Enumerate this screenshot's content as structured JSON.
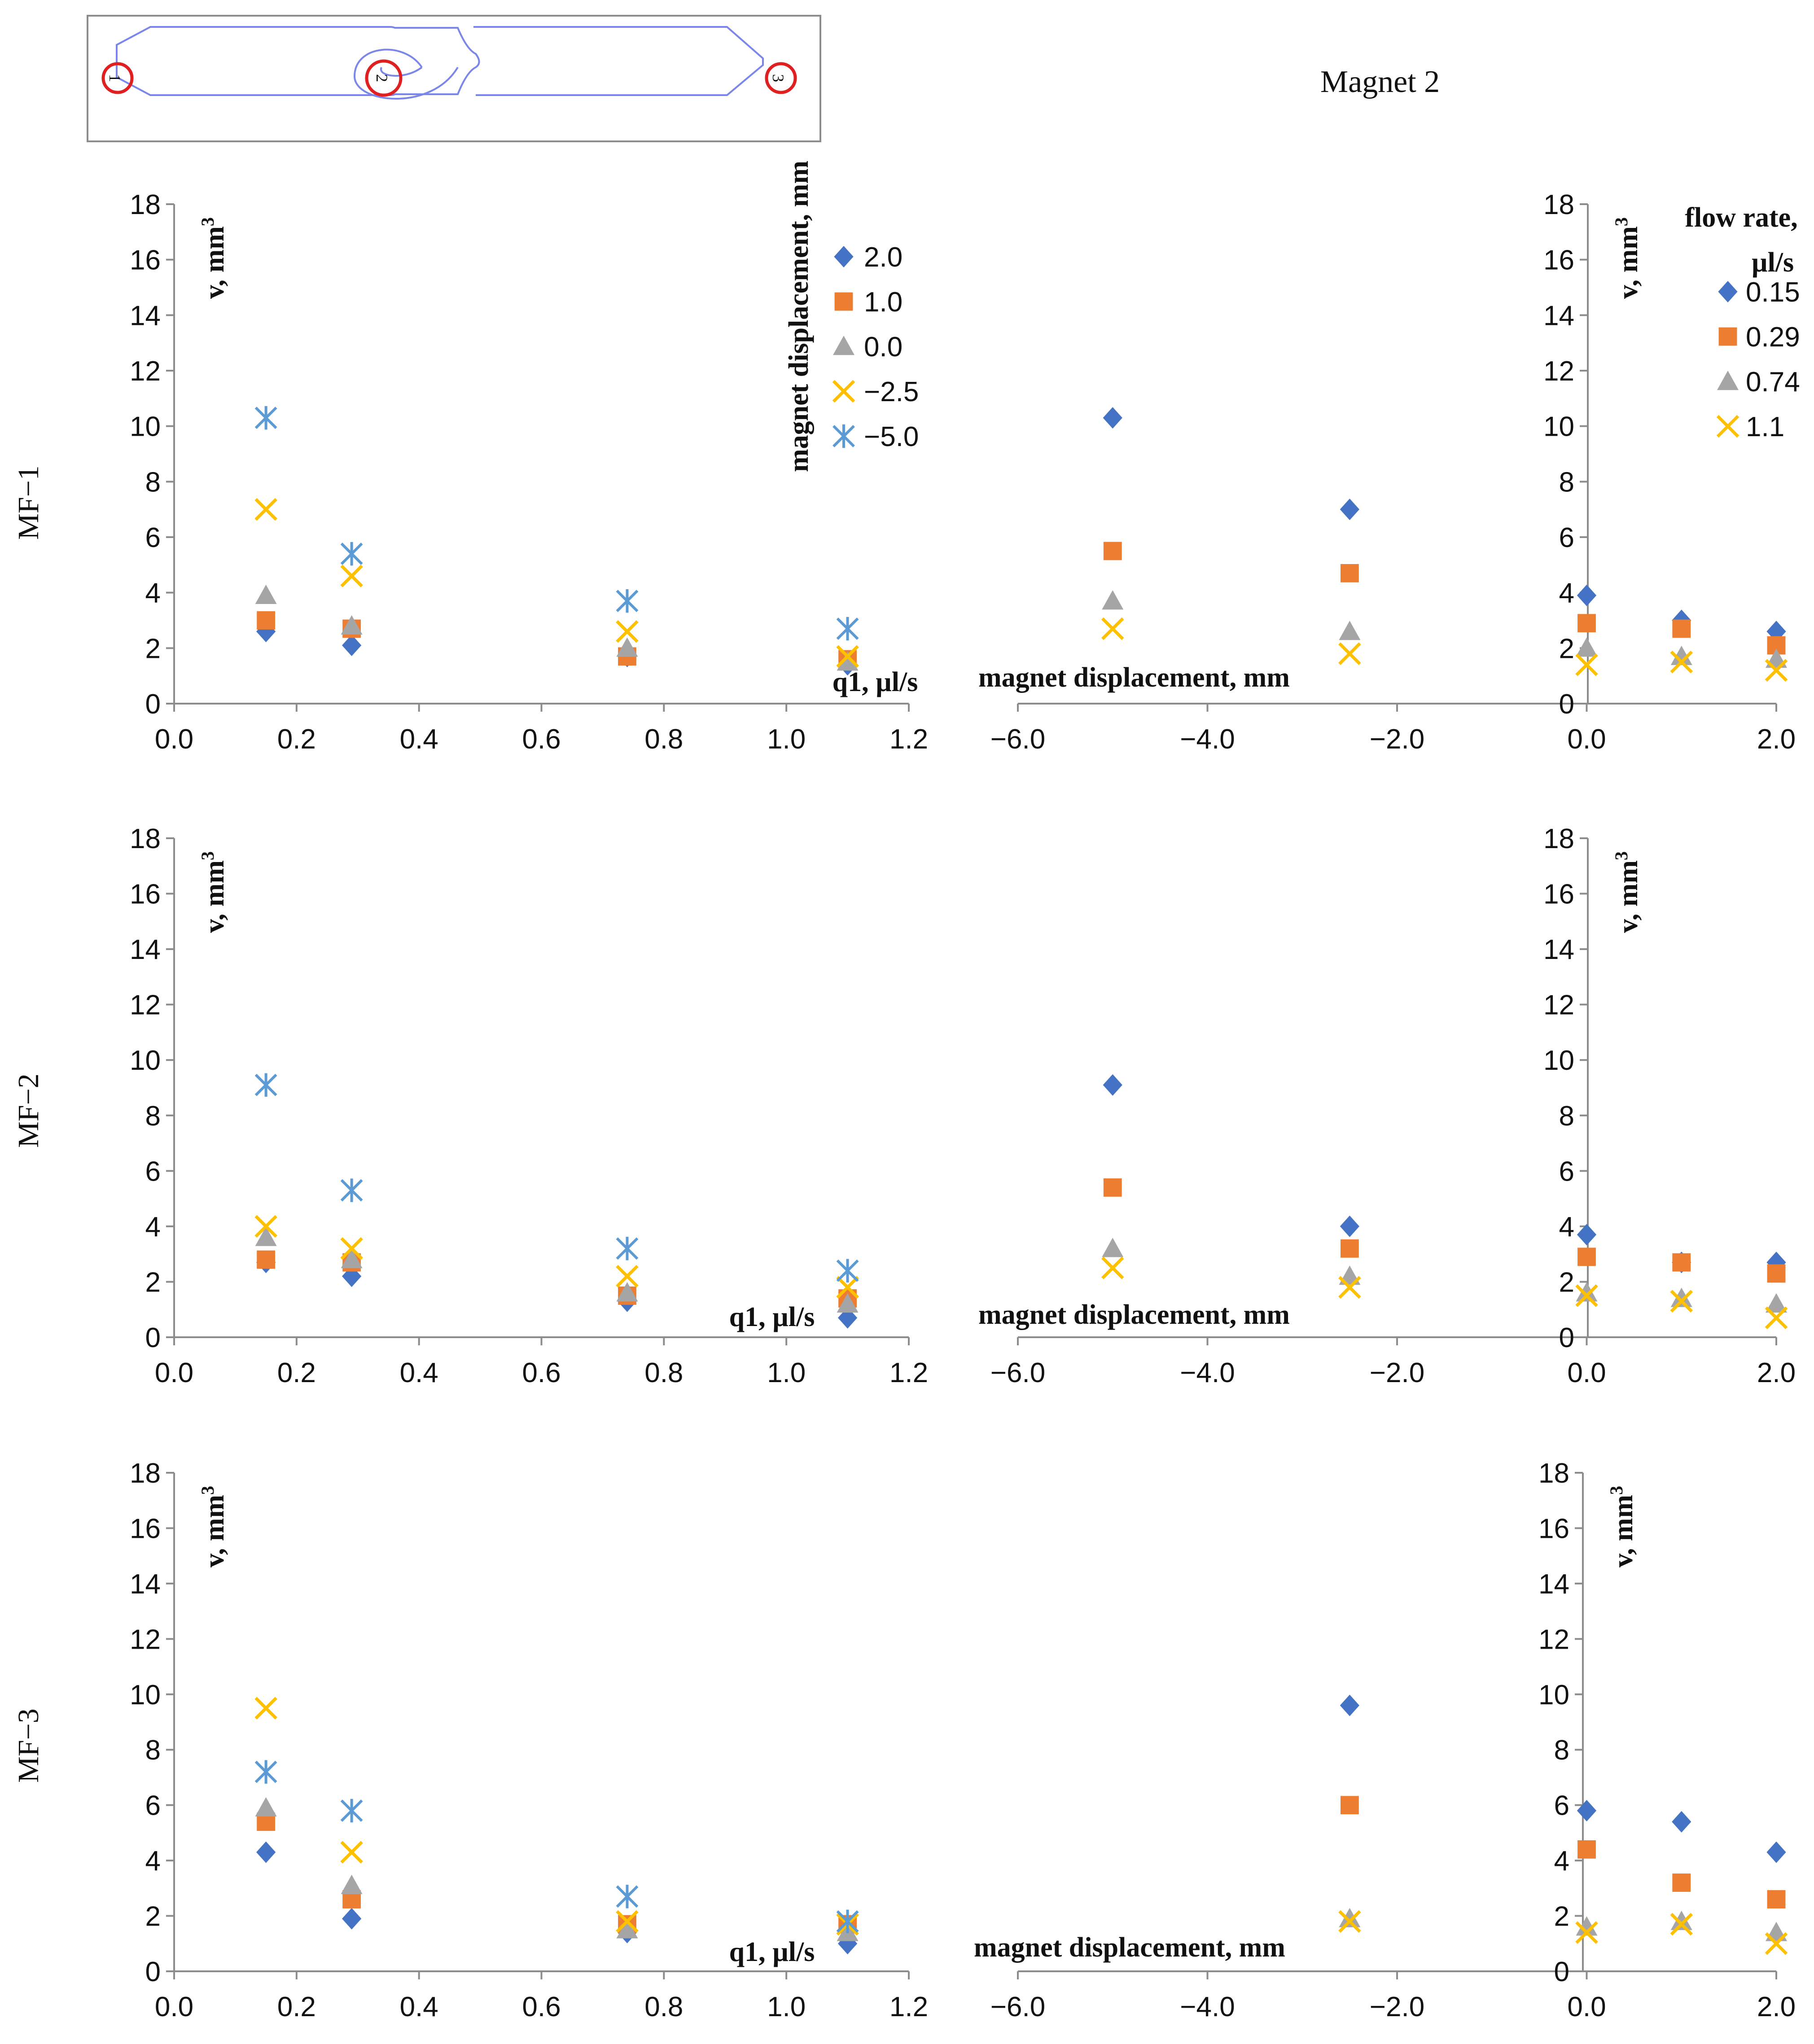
{
  "title": "Magnet 2",
  "schematic": {
    "ports": [
      "1",
      "2",
      "3"
    ]
  },
  "colors": {
    "2.0": "#4472C4",
    "1.0": "#ED7D31",
    "0.0": "#A5A5A5",
    "-2.5": "#FFC000",
    "-5.0": "#5B9BD5",
    "0.15": "#4472C4",
    "0.29": "#ED7D31",
    "0.74": "#A5A5A5",
    "1.1": "#FFC000",
    "axis": "#8c8c8c"
  },
  "legend_left": {
    "title": "magnet displacement, mm",
    "entries": [
      {
        "label": "2.0",
        "marker": "diamond",
        "color": "#4472C4"
      },
      {
        "label": "1.0",
        "marker": "square",
        "color": "#ED7D31"
      },
      {
        "label": "0.0",
        "marker": "triangle",
        "color": "#A5A5A5"
      },
      {
        "label": "−2.5",
        "marker": "x",
        "color": "#FFC000"
      },
      {
        "label": "−5.0",
        "marker": "asterisk",
        "color": "#5B9BD5"
      }
    ]
  },
  "legend_right": {
    "title_line1": "flow rate,",
    "title_line2": "µl/s",
    "entries": [
      {
        "label": "0.15",
        "marker": "diamond",
        "color": "#4472C4"
      },
      {
        "label": "0.29",
        "marker": "square",
        "color": "#ED7D31"
      },
      {
        "label": "0.74",
        "marker": "triangle",
        "color": "#A5A5A5"
      },
      {
        "label": "1.1",
        "marker": "x",
        "color": "#FFC000"
      }
    ]
  },
  "chart_data": [
    {
      "type": "scatter",
      "row": "MF−1",
      "ylabel": "v, mm",
      "xlabel": "q1, µl/s",
      "xlim": [
        0,
        1.2
      ],
      "ylim": [
        0,
        18
      ],
      "xticks": [
        "0.0",
        "0.2",
        "0.4",
        "0.6",
        "0.8",
        "1.0",
        "1.2"
      ],
      "yticks": [
        "0",
        "2",
        "4",
        "6",
        "8",
        "10",
        "12",
        "14",
        "16",
        "18"
      ],
      "x": [
        0.15,
        0.29,
        0.74,
        1.1
      ],
      "series": [
        {
          "name": "2.0",
          "marker": "diamond",
          "color": "#4472C4",
          "values": [
            2.6,
            2.1,
            1.7,
            1.4
          ]
        },
        {
          "name": "1.0",
          "marker": "square",
          "color": "#ED7D31",
          "values": [
            3.0,
            2.7,
            1.7,
            1.6
          ]
        },
        {
          "name": "0.0",
          "marker": "triangle",
          "color": "#A5A5A5",
          "values": [
            3.9,
            2.8,
            2.0,
            1.5
          ]
        },
        {
          "name": "−2.5",
          "marker": "x",
          "color": "#FFC000",
          "values": [
            7.0,
            4.6,
            2.6,
            1.7
          ]
        },
        {
          "name": "−5.0",
          "marker": "asterisk",
          "color": "#5B9BD5",
          "values": [
            10.3,
            5.4,
            3.7,
            2.7
          ]
        }
      ]
    },
    {
      "type": "scatter",
      "row": "MF−1",
      "ylabel": "v, mm",
      "xlabel": "magnet displacement, mm",
      "xlim": [
        -6,
        2
      ],
      "ylim": [
        0,
        18
      ],
      "xticks": [
        "−6.0",
        "−4.0",
        "−2.0",
        "0.0",
        "2.0"
      ],
      "yticks": [
        "0",
        "2",
        "4",
        "6",
        "8",
        "10",
        "12",
        "14",
        "16",
        "18"
      ],
      "x": [
        -5.0,
        -2.5,
        0.0,
        1.0,
        2.0
      ],
      "series": [
        {
          "name": "0.15",
          "marker": "diamond",
          "color": "#4472C4",
          "values": [
            10.3,
            7.0,
            3.9,
            3.0,
            2.6
          ]
        },
        {
          "name": "0.29",
          "marker": "square",
          "color": "#ED7D31",
          "values": [
            5.5,
            4.7,
            2.9,
            2.7,
            2.1
          ]
        },
        {
          "name": "0.74",
          "marker": "triangle",
          "color": "#A5A5A5",
          "values": [
            3.7,
            2.6,
            2.0,
            1.7,
            1.6
          ]
        },
        {
          "name": "1.1",
          "marker": "x",
          "color": "#FFC000",
          "values": [
            2.7,
            1.8,
            1.4,
            1.5,
            1.2
          ]
        }
      ]
    },
    {
      "type": "scatter",
      "row": "MF−2",
      "ylabel": "v, mm",
      "xlabel": "q1, µl/s",
      "xlim": [
        0,
        1.2
      ],
      "ylim": [
        0,
        18
      ],
      "xticks": [
        "0.0",
        "0.2",
        "0.4",
        "0.6",
        "0.8",
        "1.0",
        "1.2"
      ],
      "yticks": [
        "0",
        "2",
        "4",
        "6",
        "8",
        "10",
        "12",
        "14",
        "16",
        "18"
      ],
      "x": [
        0.15,
        0.29,
        0.74,
        1.1
      ],
      "series": [
        {
          "name": "2.0",
          "marker": "diamond",
          "color": "#4472C4",
          "values": [
            2.7,
            2.2,
            1.3,
            0.7
          ]
        },
        {
          "name": "1.0",
          "marker": "square",
          "color": "#ED7D31",
          "values": [
            2.8,
            2.7,
            1.5,
            1.4
          ]
        },
        {
          "name": "0.0",
          "marker": "triangle",
          "color": "#A5A5A5",
          "values": [
            3.6,
            2.8,
            1.6,
            1.2
          ]
        },
        {
          "name": "−2.5",
          "marker": "x",
          "color": "#FFC000",
          "values": [
            4.0,
            3.2,
            2.2,
            1.8
          ]
        },
        {
          "name": "−5.0",
          "marker": "asterisk",
          "color": "#5B9BD5",
          "values": [
            9.1,
            5.3,
            3.2,
            2.4
          ]
        }
      ]
    },
    {
      "type": "scatter",
      "row": "MF−2",
      "ylabel": "v, mm",
      "xlabel": "magnet displacement, mm",
      "xlim": [
        -6,
        2
      ],
      "ylim": [
        0,
        18
      ],
      "xticks": [
        "−6.0",
        "−4.0",
        "−2.0",
        "0.0",
        "2.0"
      ],
      "yticks": [
        "0",
        "2",
        "4",
        "6",
        "8",
        "10",
        "12",
        "14",
        "16",
        "18"
      ],
      "x": [
        -5.0,
        -2.5,
        0.0,
        1.0,
        2.0
      ],
      "series": [
        {
          "name": "0.15",
          "marker": "diamond",
          "color": "#4472C4",
          "values": [
            9.1,
            4.0,
            3.7,
            2.7,
            2.7
          ]
        },
        {
          "name": "0.29",
          "marker": "square",
          "color": "#ED7D31",
          "values": [
            5.4,
            3.2,
            2.9,
            2.7,
            2.3
          ]
        },
        {
          "name": "0.74",
          "marker": "triangle",
          "color": "#A5A5A5",
          "values": [
            3.2,
            2.2,
            1.6,
            1.4,
            1.2
          ]
        },
        {
          "name": "1.1",
          "marker": "x",
          "color": "#FFC000",
          "values": [
            2.5,
            1.8,
            1.5,
            1.3,
            0.7
          ]
        }
      ]
    },
    {
      "type": "scatter",
      "row": "MF−3",
      "ylabel": "v, mm",
      "xlabel": "q1, µl/s",
      "xlim": [
        0,
        1.2
      ],
      "ylim": [
        0,
        18
      ],
      "xticks": [
        "0.0",
        "0.2",
        "0.4",
        "0.6",
        "0.8",
        "1.0",
        "1.2"
      ],
      "yticks": [
        "0",
        "2",
        "4",
        "6",
        "8",
        "10",
        "12",
        "14",
        "16",
        "18"
      ],
      "x": [
        0.15,
        0.29,
        0.74,
        1.1
      ],
      "series": [
        {
          "name": "2.0",
          "marker": "diamond",
          "color": "#4472C4",
          "values": [
            4.3,
            1.9,
            1.4,
            1.0
          ]
        },
        {
          "name": "1.0",
          "marker": "square",
          "color": "#ED7D31",
          "values": [
            5.4,
            2.6,
            1.7,
            1.7
          ]
        },
        {
          "name": "0.0",
          "marker": "triangle",
          "color": "#A5A5A5",
          "values": [
            5.9,
            3.1,
            1.5,
            1.4
          ]
        },
        {
          "name": "−2.5",
          "marker": "x",
          "color": "#FFC000",
          "values": [
            9.5,
            4.3,
            1.8,
            1.7
          ]
        },
        {
          "name": "−5.0",
          "marker": "asterisk",
          "color": "#5B9BD5",
          "values": [
            7.2,
            5.8,
            2.7,
            1.8
          ]
        }
      ]
    },
    {
      "type": "scatter",
      "row": "MF−3",
      "ylabel": "v, mm",
      "xlabel": "magnet displacement, mm",
      "xlim": [
        -6,
        2
      ],
      "ylim": [
        0,
        18
      ],
      "xticks": [
        "−6.0",
        "−4.0",
        "−2.0",
        "0.0",
        "2.0"
      ],
      "yticks": [
        "0",
        "2",
        "4",
        "6",
        "8",
        "10",
        "12",
        "14",
        "16",
        "18"
      ],
      "x": [
        -2.5,
        0.0,
        1.0,
        2.0
      ],
      "series": [
        {
          "name": "0.15",
          "marker": "diamond",
          "color": "#4472C4",
          "values": [
            9.6,
            5.8,
            5.4,
            4.3
          ]
        },
        {
          "name": "0.29",
          "marker": "square",
          "color": "#ED7D31",
          "values": [
            6.0,
            4.4,
            3.2,
            2.6
          ]
        },
        {
          "name": "0.74",
          "marker": "triangle",
          "color": "#A5A5A5",
          "values": [
            1.9,
            1.6,
            1.8,
            1.4
          ]
        },
        {
          "name": "1.1",
          "marker": "x",
          "color": "#FFC000",
          "values": [
            1.8,
            1.4,
            1.7,
            1.0
          ]
        }
      ]
    }
  ]
}
